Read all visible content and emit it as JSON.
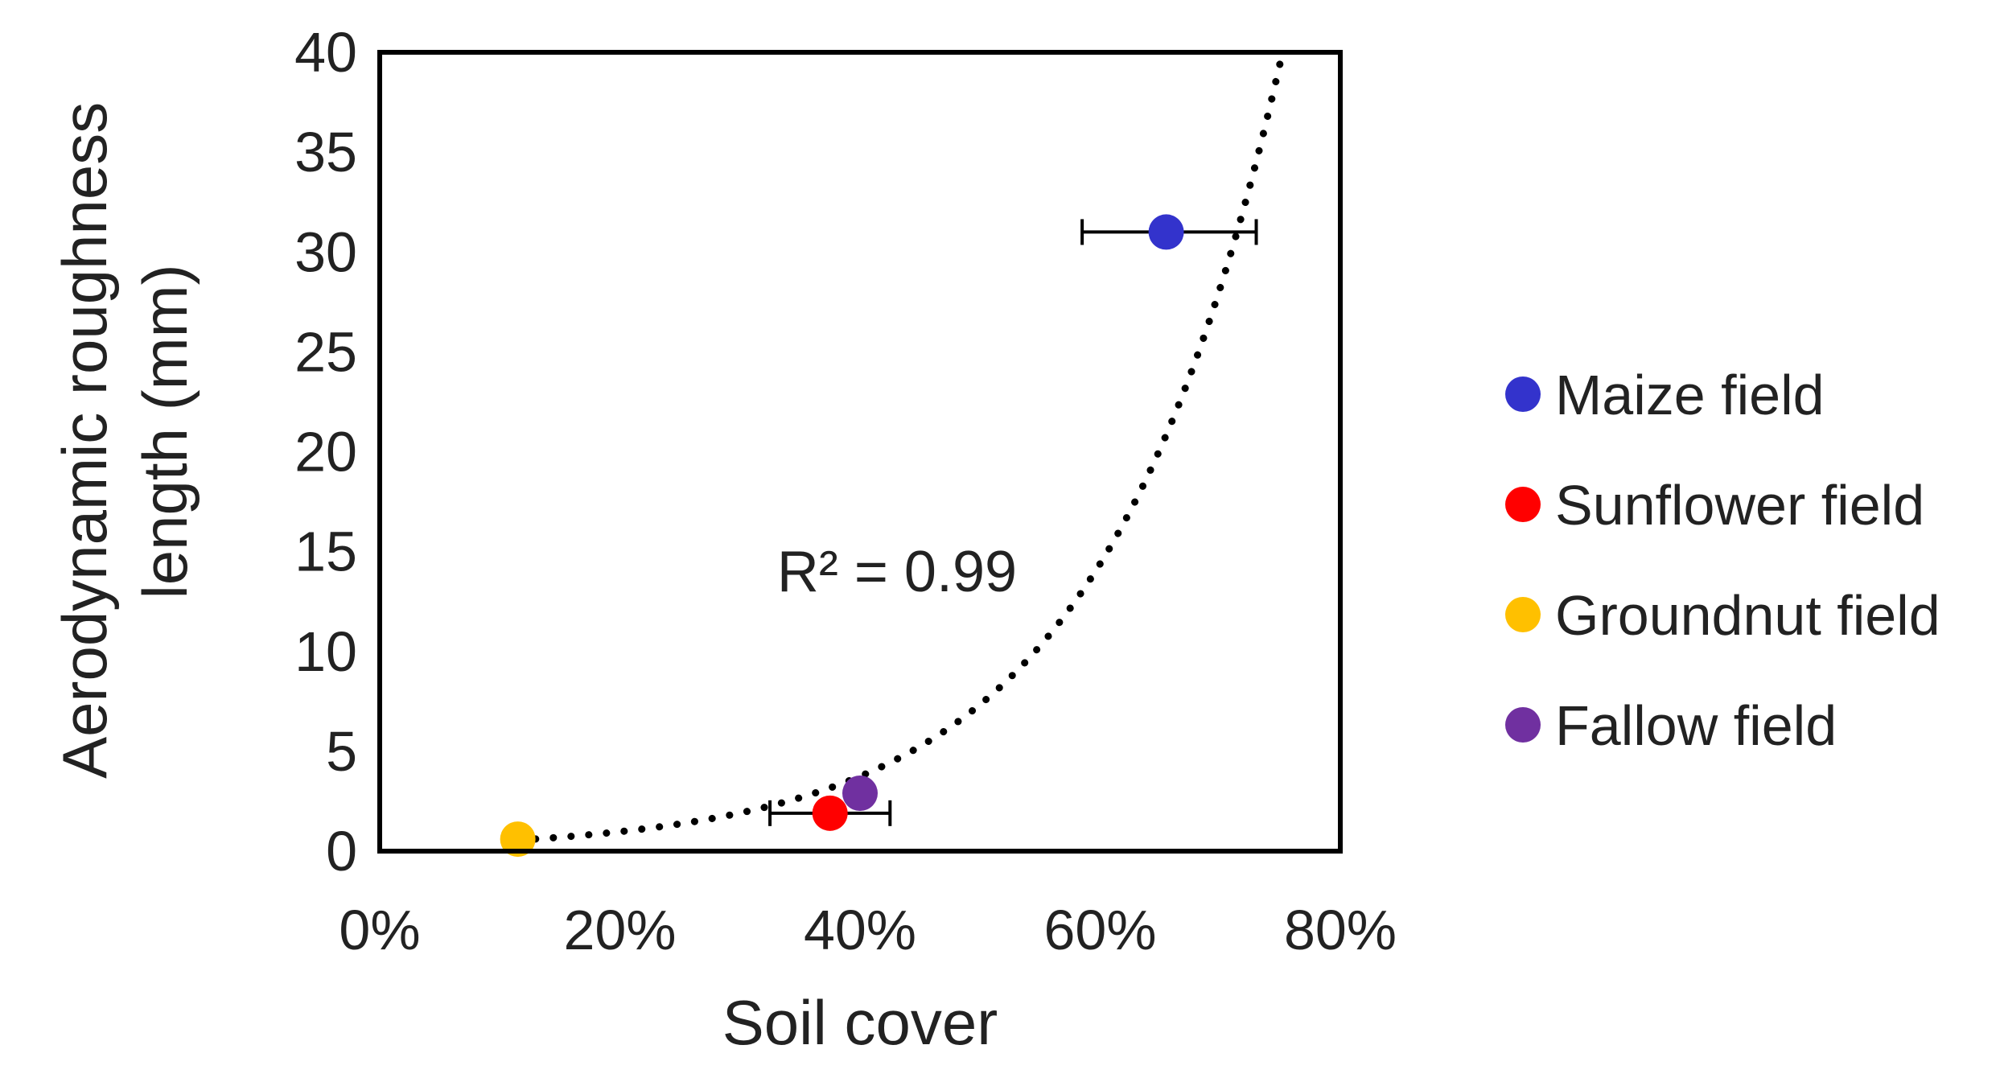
{
  "chart_data": {
    "type": "scatter",
    "title": "",
    "xlabel": "Soil cover",
    "ylabel_lines": [
      "Aerodynamic roughness",
      "length (mm)"
    ],
    "xlim": [
      0,
      80
    ],
    "ylim": [
      0,
      40
    ],
    "x_unit": "%",
    "x_ticks": [
      0,
      20,
      40,
      60,
      80
    ],
    "x_tick_labels": [
      "0%",
      "20%",
      "40%",
      "60%",
      "80%"
    ],
    "y_ticks": [
      0,
      5,
      10,
      15,
      20,
      25,
      30,
      35,
      40
    ],
    "y_tick_labels": [
      "0",
      "5",
      "10",
      "15",
      "20",
      "25",
      "30",
      "35",
      "40"
    ],
    "grid": false,
    "legend_position": "right",
    "series": [
      {
        "name": "Maize field",
        "color": "#3333cc",
        "x": 65.5,
        "y": 31.0,
        "x_err_low": 58.5,
        "x_err_high": 73.0
      },
      {
        "name": "Sunflower field",
        "color": "#ff0000",
        "x": 37.5,
        "y": 1.9,
        "x_err_low": 32.5,
        "x_err_high": 42.5
      },
      {
        "name": "Groundnut field",
        "color": "#ffc000",
        "x": 11.5,
        "y": 0.6
      },
      {
        "name": "Fallow field",
        "color": "#7030a0",
        "x": 40.0,
        "y": 2.9
      }
    ],
    "trendline": {
      "style": "dotted",
      "color": "#000000",
      "fit": "exponential",
      "x_range": [
        11.5,
        75.0
      ],
      "points": [
        [
          11.5,
          0.55
        ],
        [
          75.0,
          39.5
        ]
      ],
      "annotation": "R² = 0.99"
    }
  }
}
